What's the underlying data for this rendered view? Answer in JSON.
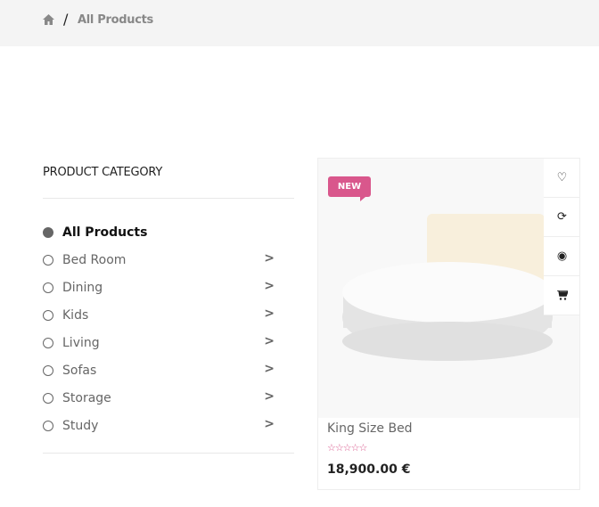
{
  "breadcrumb": {
    "home_icon": "home-icon",
    "separator": "/",
    "current": "All Products"
  },
  "sidebar": {
    "title": "PRODUCT CATEGORY",
    "items": [
      {
        "label": "All Products",
        "selected": true
      },
      {
        "label": "Bed Room",
        "selected": false
      },
      {
        "label": "Dining",
        "selected": false
      },
      {
        "label": "Kids",
        "selected": false
      },
      {
        "label": "Living",
        "selected": false
      },
      {
        "label": "Sofas",
        "selected": false
      },
      {
        "label": "Storage",
        "selected": false
      },
      {
        "label": "Study",
        "selected": false
      }
    ]
  },
  "product": {
    "badge": "NEW",
    "name": "King Size Bed",
    "rating": 0,
    "stars": "☆☆☆☆☆",
    "price": "18,900.00 €",
    "actions": [
      "heart-icon",
      "refresh-icon",
      "eye-icon",
      "cart-icon"
    ]
  },
  "colors": {
    "accent": "#d9578c"
  }
}
